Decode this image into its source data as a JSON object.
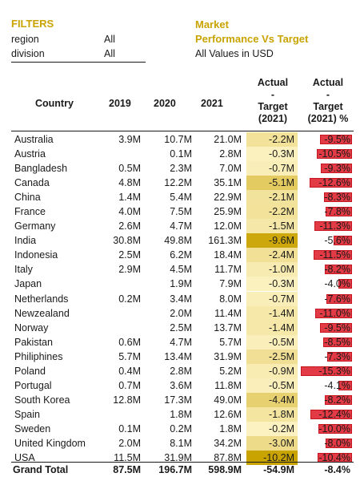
{
  "filters": {
    "title": "FILTERS",
    "rows": [
      {
        "label": "region",
        "value": "All"
      },
      {
        "label": "division",
        "value": "All"
      }
    ]
  },
  "market": {
    "title_line1": "Market",
    "title_line2": "Performance  Vs Target",
    "subtitle": "All Values in USD"
  },
  "colors": {
    "accent": "#c9a300",
    "diff_light": "#fdf3c4",
    "diff_dark": "#c9a300",
    "pct_bar": "#e23b45"
  },
  "chart_data": {
    "type": "table",
    "columns": {
      "country": "Country",
      "y2019": "2019",
      "y2020": "2020",
      "y2021": "2021",
      "diff": [
        "Actual",
        "-",
        "Target",
        "(2021)"
      ],
      "pct": [
        "Actual",
        "-",
        "Target",
        "(2021) %"
      ]
    },
    "rows": [
      {
        "country": "Australia",
        "y2019": "3.9M",
        "y2020": "10.7M",
        "y2021": "21.0M",
        "diff": "-2.2M",
        "diff_value": -2.2,
        "pct": "-9.5%",
        "pct_value": -9.5
      },
      {
        "country": "Austria",
        "y2019": "",
        "y2020": "0.1M",
        "y2021": "2.8M",
        "diff": "-0.3M",
        "diff_value": -0.3,
        "pct": "-10.5%",
        "pct_value": -10.5
      },
      {
        "country": "Bangladesh",
        "y2019": "0.5M",
        "y2020": "2.3M",
        "y2021": "7.0M",
        "diff": "-0.7M",
        "diff_value": -0.7,
        "pct": "-9.3%",
        "pct_value": -9.3
      },
      {
        "country": "Canada",
        "y2019": "4.8M",
        "y2020": "12.2M",
        "y2021": "35.1M",
        "diff": "-5.1M",
        "diff_value": -5.1,
        "pct": "-12.6%",
        "pct_value": -12.6
      },
      {
        "country": "China",
        "y2019": "1.4M",
        "y2020": "5.4M",
        "y2021": "22.9M",
        "diff": "-2.1M",
        "diff_value": -2.1,
        "pct": "-8.3%",
        "pct_value": -8.3
      },
      {
        "country": "France",
        "y2019": "4.0M",
        "y2020": "7.5M",
        "y2021": "25.9M",
        "diff": "-2.2M",
        "diff_value": -2.2,
        "pct": "-7.8%",
        "pct_value": -7.8
      },
      {
        "country": "Germany",
        "y2019": "2.6M",
        "y2020": "4.7M",
        "y2021": "12.0M",
        "diff": "-1.5M",
        "diff_value": -1.5,
        "pct": "-11.3%",
        "pct_value": -11.3
      },
      {
        "country": "India",
        "y2019": "30.8M",
        "y2020": "49.8M",
        "y2021": "161.3M",
        "diff": "-9.6M",
        "diff_value": -9.6,
        "pct": "-5.6%",
        "pct_value": -5.6
      },
      {
        "country": "Indonesia",
        "y2019": "2.5M",
        "y2020": "6.2M",
        "y2021": "18.4M",
        "diff": "-2.4M",
        "diff_value": -2.4,
        "pct": "-11.5%",
        "pct_value": -11.5
      },
      {
        "country": "Italy",
        "y2019": "2.9M",
        "y2020": "4.5M",
        "y2021": "11.7M",
        "diff": "-1.0M",
        "diff_value": -1.0,
        "pct": "-8.2%",
        "pct_value": -8.2
      },
      {
        "country": "Japan",
        "y2019": "",
        "y2020": "1.9M",
        "y2021": "7.9M",
        "diff": "-0.3M",
        "diff_value": -0.3,
        "pct": "-4.0%",
        "pct_value": -4.0
      },
      {
        "country": "Netherlands",
        "y2019": "0.2M",
        "y2020": "3.4M",
        "y2021": "8.0M",
        "diff": "-0.7M",
        "diff_value": -0.7,
        "pct": "-7.6%",
        "pct_value": -7.6
      },
      {
        "country": "Newzealand",
        "y2019": "",
        "y2020": "2.0M",
        "y2021": "11.4M",
        "diff": "-1.4M",
        "diff_value": -1.4,
        "pct": "-11.0%",
        "pct_value": -11.0
      },
      {
        "country": "Norway",
        "y2019": "",
        "y2020": "2.5M",
        "y2021": "13.7M",
        "diff": "-1.4M",
        "diff_value": -1.4,
        "pct": "-9.5%",
        "pct_value": -9.5
      },
      {
        "country": "Pakistan",
        "y2019": "0.6M",
        "y2020": "4.7M",
        "y2021": "5.7M",
        "diff": "-0.5M",
        "diff_value": -0.5,
        "pct": "-8.5%",
        "pct_value": -8.5
      },
      {
        "country": "Philiphines",
        "y2019": "5.7M",
        "y2020": "13.4M",
        "y2021": "31.9M",
        "diff": "-2.5M",
        "diff_value": -2.5,
        "pct": "-7.3%",
        "pct_value": -7.3
      },
      {
        "country": "Poland",
        "y2019": "0.4M",
        "y2020": "2.8M",
        "y2021": "5.2M",
        "diff": "-0.9M",
        "diff_value": -0.9,
        "pct": "-15.3%",
        "pct_value": -15.3
      },
      {
        "country": "Portugal",
        "y2019": "0.7M",
        "y2020": "3.6M",
        "y2021": "11.8M",
        "diff": "-0.5M",
        "diff_value": -0.5,
        "pct": "-4.1%",
        "pct_value": -4.1
      },
      {
        "country": "South Korea",
        "y2019": "12.8M",
        "y2020": "17.3M",
        "y2021": "49.0M",
        "diff": "-4.4M",
        "diff_value": -4.4,
        "pct": "-8.2%",
        "pct_value": -8.2
      },
      {
        "country": "Spain",
        "y2019": "",
        "y2020": "1.8M",
        "y2021": "12.6M",
        "diff": "-1.8M",
        "diff_value": -1.8,
        "pct": "-12.4%",
        "pct_value": -12.4
      },
      {
        "country": "Sweden",
        "y2019": "0.1M",
        "y2020": "0.2M",
        "y2021": "1.8M",
        "diff": "-0.2M",
        "diff_value": -0.2,
        "pct": "-10.0%",
        "pct_value": -10.0
      },
      {
        "country": "United Kingdom",
        "y2019": "2.0M",
        "y2020": "8.1M",
        "y2021": "34.2M",
        "diff": "-3.0M",
        "diff_value": -3.0,
        "pct": "-8.0%",
        "pct_value": -8.0
      },
      {
        "country": "USA",
        "y2019": "11.5M",
        "y2020": "31.9M",
        "y2021": "87.8M",
        "diff": "-10.2M",
        "diff_value": -10.2,
        "pct": "-10.4%",
        "pct_value": -10.4
      }
    ],
    "total": {
      "country": "Grand Total",
      "y2019": "87.5M",
      "y2020": "196.7M",
      "y2021": "598.9M",
      "diff": "-54.9M",
      "pct": "-8.4%"
    }
  }
}
